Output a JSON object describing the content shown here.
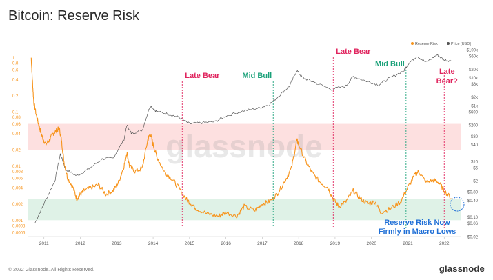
{
  "page": {
    "title": "Bitcoin: Reserve Risk",
    "copyright": "© 2022 Glassnode. All Rights Reserved.",
    "brand": "glassnode",
    "watermark": "glassnode"
  },
  "colors": {
    "reserve_risk": "#f7931a",
    "price": "#555555",
    "red_band": "#fddada",
    "green_band": "#d9f0e3",
    "late_bear": "#e0245e",
    "mid_bull": "#1aa179",
    "callout": "#1f6fd6"
  },
  "chart_data": {
    "type": "line",
    "title": "Bitcoin: Reserve Risk",
    "x_ticks": [
      "2011",
      "2012",
      "2013",
      "2014",
      "2015",
      "2016",
      "2017",
      "2018",
      "2019",
      "2020",
      "2021",
      "2022"
    ],
    "y_left_scale": "log",
    "y_left_ticks": [
      "1",
      "0.8",
      "0.6",
      "0.4",
      "0.2",
      "0.1",
      "0.08",
      "0.06",
      "0.04",
      "0.02",
      "0.01",
      "0.008",
      "0.006",
      "0.004",
      "0.002",
      "0.001",
      "0.0008",
      "0.0006"
    ],
    "y_right_scale": "log",
    "y_right_ticks": [
      "$100k",
      "$60k",
      "$20k",
      "$10k",
      "$6k",
      "$2k",
      "$1k",
      "$600",
      "$200",
      "$80",
      "$40",
      "$10",
      "$6",
      "$2",
      "$0.80",
      "$0.40",
      "$0.10",
      "$0.06",
      "$0.02"
    ],
    "legend": [
      "Reserve Risk",
      "Price [USD]"
    ],
    "legend_position": "top-right",
    "bands": [
      {
        "name": "red",
        "y_range": [
          0.02,
          0.06
        ]
      },
      {
        "name": "green",
        "y_range": [
          0.001,
          0.0025
        ]
      }
    ],
    "annotations": [
      {
        "label": "Late Bear",
        "x": 2014.8,
        "type": "late_bear"
      },
      {
        "label": "Mid Bull",
        "x": 2017.3,
        "type": "mid_bull"
      },
      {
        "label": "Late Bear",
        "x": 2018.95,
        "type": "late_bear"
      },
      {
        "label": "Mid Bull",
        "x": 2020.95,
        "type": "mid_bull"
      },
      {
        "label": "Late Bear?",
        "x": 2022.0,
        "type": "late_bear"
      }
    ],
    "callout": "Reserve Risk Now Firmly in Macro Lows",
    "callout_lines": [
      "Reserve Risk Now",
      "Firmly in Macro Lows"
    ],
    "series": [
      {
        "name": "Reserve Risk",
        "points": [
          [
            2010.65,
            1.0
          ],
          [
            2010.68,
            0.4
          ],
          [
            2010.72,
            0.15
          ],
          [
            2010.8,
            0.08
          ],
          [
            2010.88,
            0.05
          ],
          [
            2010.95,
            0.035
          ],
          [
            2011.05,
            0.025
          ],
          [
            2011.15,
            0.03
          ],
          [
            2011.25,
            0.04
          ],
          [
            2011.35,
            0.045
          ],
          [
            2011.42,
            0.05
          ],
          [
            2011.48,
            0.03
          ],
          [
            2011.55,
            0.012
          ],
          [
            2011.65,
            0.006
          ],
          [
            2011.8,
            0.004
          ],
          [
            2011.9,
            0.0025
          ],
          [
            2012.0,
            0.003
          ],
          [
            2012.1,
            0.0035
          ],
          [
            2012.3,
            0.004
          ],
          [
            2012.5,
            0.0045
          ],
          [
            2012.7,
            0.003
          ],
          [
            2012.9,
            0.0035
          ],
          [
            2013.05,
            0.005
          ],
          [
            2013.2,
            0.01
          ],
          [
            2013.28,
            0.018
          ],
          [
            2013.35,
            0.01
          ],
          [
            2013.5,
            0.008
          ],
          [
            2013.7,
            0.009
          ],
          [
            2013.85,
            0.03
          ],
          [
            2013.92,
            0.04
          ],
          [
            2014.0,
            0.025
          ],
          [
            2014.1,
            0.015
          ],
          [
            2014.3,
            0.008
          ],
          [
            2014.5,
            0.006
          ],
          [
            2014.7,
            0.004
          ],
          [
            2014.9,
            0.0025
          ],
          [
            2015.05,
            0.002
          ],
          [
            2015.2,
            0.0016
          ],
          [
            2015.5,
            0.0013
          ],
          [
            2015.8,
            0.0012
          ],
          [
            2016.0,
            0.0014
          ],
          [
            2016.3,
            0.0012
          ],
          [
            2016.5,
            0.0018
          ],
          [
            2016.8,
            0.0015
          ],
          [
            2017.0,
            0.002
          ],
          [
            2017.2,
            0.0022
          ],
          [
            2017.4,
            0.003
          ],
          [
            2017.6,
            0.005
          ],
          [
            2017.8,
            0.009
          ],
          [
            2017.95,
            0.03
          ],
          [
            2018.0,
            0.025
          ],
          [
            2018.2,
            0.012
          ],
          [
            2018.4,
            0.007
          ],
          [
            2018.6,
            0.005
          ],
          [
            2018.8,
            0.004
          ],
          [
            2018.95,
            0.0025
          ],
          [
            2019.1,
            0.0018
          ],
          [
            2019.3,
            0.0022
          ],
          [
            2019.5,
            0.0035
          ],
          [
            2019.7,
            0.0025
          ],
          [
            2019.9,
            0.002
          ],
          [
            2020.1,
            0.0022
          ],
          [
            2020.25,
            0.0014
          ],
          [
            2020.5,
            0.0016
          ],
          [
            2020.8,
            0.0022
          ],
          [
            2021.0,
            0.004
          ],
          [
            2021.2,
            0.007
          ],
          [
            2021.3,
            0.008
          ],
          [
            2021.5,
            0.005
          ],
          [
            2021.7,
            0.0055
          ],
          [
            2021.85,
            0.005
          ],
          [
            2022.0,
            0.0035
          ],
          [
            2022.2,
            0.0025
          ]
        ]
      },
      {
        "name": "Price [USD]",
        "points": [
          [
            2010.75,
            0.06
          ],
          [
            2011.0,
            0.3
          ],
          [
            2011.3,
            2
          ],
          [
            2011.45,
            18
          ],
          [
            2011.6,
            5
          ],
          [
            2011.9,
            3
          ],
          [
            2012.2,
            5
          ],
          [
            2012.6,
            12
          ],
          [
            2012.9,
            13
          ],
          [
            2013.2,
            60
          ],
          [
            2013.28,
            200
          ],
          [
            2013.4,
            100
          ],
          [
            2013.7,
            130
          ],
          [
            2013.92,
            1000
          ],
          [
            2014.1,
            600
          ],
          [
            2014.4,
            500
          ],
          [
            2014.7,
            380
          ],
          [
            2015.0,
            220
          ],
          [
            2015.3,
            240
          ],
          [
            2015.7,
            260
          ],
          [
            2016.0,
            420
          ],
          [
            2016.5,
            650
          ],
          [
            2016.9,
            800
          ],
          [
            2017.2,
            1100
          ],
          [
            2017.5,
            2500
          ],
          [
            2017.75,
            5000
          ],
          [
            2017.95,
            18000
          ],
          [
            2018.1,
            10000
          ],
          [
            2018.4,
            7000
          ],
          [
            2018.9,
            3800
          ],
          [
            2019.3,
            5000
          ],
          [
            2019.5,
            11000
          ],
          [
            2019.9,
            7200
          ],
          [
            2020.2,
            5500
          ],
          [
            2020.5,
            9500
          ],
          [
            2020.9,
            18000
          ],
          [
            2021.0,
            30000
          ],
          [
            2021.25,
            60000
          ],
          [
            2021.5,
            35000
          ],
          [
            2021.8,
            65000
          ],
          [
            2022.0,
            43000
          ],
          [
            2022.2,
            40000
          ]
        ]
      }
    ]
  }
}
